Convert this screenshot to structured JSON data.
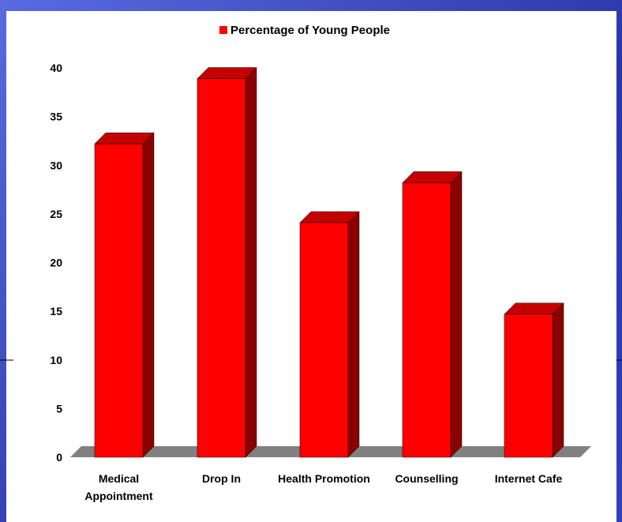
{
  "chart_data": {
    "type": "bar",
    "title": "",
    "legend": {
      "label": "Percentage of Young People",
      "position": "top-center",
      "color": "#ff0000"
    },
    "categories": [
      [
        "Medical",
        "Appointment"
      ],
      [
        "Drop In"
      ],
      [
        "Health Promotion"
      ],
      [
        "Counselling"
      ],
      [
        "Internet Cafe"
      ]
    ],
    "series": [
      {
        "name": "Percentage of Young People",
        "values": [
          32.2,
          38.9,
          24.1,
          28.2,
          14.7
        ]
      }
    ],
    "ylim": [
      0,
      40
    ],
    "yticks": [
      "0",
      "5",
      "10",
      "15",
      "20",
      "25",
      "30",
      "35",
      "40"
    ],
    "xlabel": "",
    "ylabel": "",
    "grid": false,
    "style": "3d",
    "colors": {
      "bar_front": "#ff0000",
      "bar_side": "#8b0000",
      "bar_top": "#c40000",
      "floor": "#808080"
    }
  }
}
